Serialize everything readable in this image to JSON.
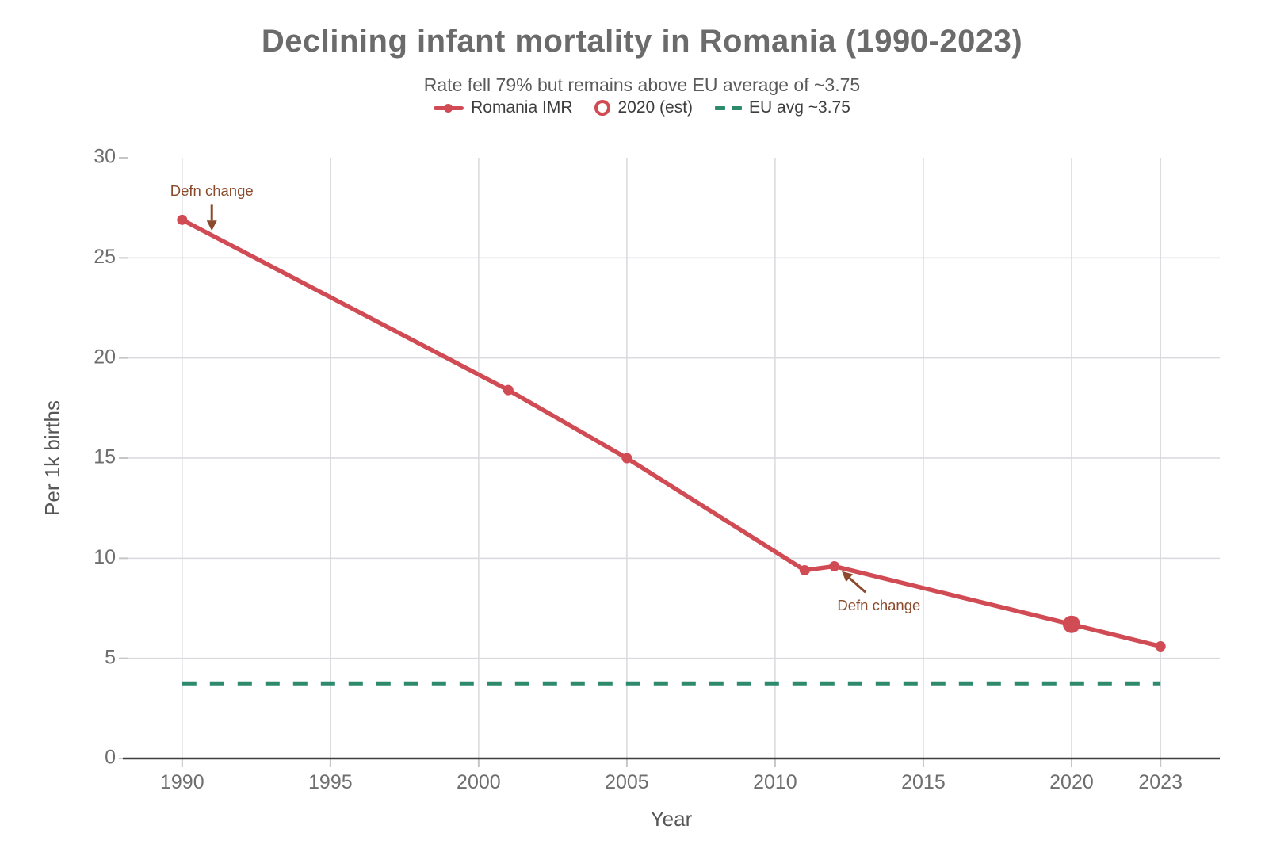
{
  "header": {
    "title": "Declining infant mortality in Romania (1990-2023)",
    "subtitle": "Rate fell 79% but remains above EU average of ~3.75"
  },
  "legend": {
    "items": [
      {
        "label": "Romania IMR",
        "swatch": "line-dot",
        "color": "#d04b54"
      },
      {
        "label": "2020 (est)",
        "swatch": "open-circle",
        "color": "#d04b54"
      },
      {
        "label": "EU avg ~3.75",
        "swatch": "dashes",
        "color": "#2e8a6c"
      }
    ]
  },
  "chart_data": {
    "type": "line",
    "title": "Declining infant mortality in Romania (1990-2023)",
    "subtitle": "Rate fell 79% but remains above EU average of ~3.75",
    "xlabel": "Year",
    "ylabel": "Per 1k births",
    "xlim": [
      1988,
      2025
    ],
    "ylim": [
      0,
      30
    ],
    "x_ticks": [
      1990,
      1995,
      2000,
      2005,
      2010,
      2015,
      2020,
      2023
    ],
    "y_ticks": [
      0,
      5,
      10,
      15,
      20,
      25,
      30
    ],
    "grid": true,
    "legend_position": "top",
    "series": [
      {
        "name": "Romania IMR",
        "type": "line",
        "color": "#d04b54",
        "points": [
          {
            "x": 1990,
            "y": 26.9
          },
          {
            "x": 2001,
            "y": 18.4
          },
          {
            "x": 2005,
            "y": 15.0
          },
          {
            "x": 2011,
            "y": 9.4
          },
          {
            "x": 2012,
            "y": 9.6
          },
          {
            "x": 2020,
            "y": 6.7
          },
          {
            "x": 2023,
            "y": 5.6
          }
        ],
        "emphasized_point_x": 2020,
        "emphasized_point_label": "2020 (est)"
      },
      {
        "name": "EU avg ~3.75",
        "type": "dashed-horizontal-line",
        "color": "#2e8a6c",
        "y": 3.75,
        "x_start": 1990,
        "x_end": 2023
      }
    ],
    "annotations": [
      {
        "text": "Defn change",
        "color": "#8b4a2c",
        "text_x": 1991.0,
        "text_y": 28.3,
        "arrow_from": {
          "x": 1991.0,
          "y": 27.65
        },
        "arrow_to": {
          "x": 1991.0,
          "y": 26.35
        }
      },
      {
        "text": "Defn change",
        "color": "#8b4a2c",
        "text_x": 2013.5,
        "text_y": 7.6,
        "arrow_from": {
          "x": 2013.05,
          "y": 8.3
        },
        "arrow_to": {
          "x": 2012.25,
          "y": 9.35
        }
      }
    ],
    "style": {
      "line_color": "#d04b54",
      "eu_line_color": "#2e8a6c",
      "annotation_color": "#8b4a2c",
      "grid_color": "#d9d9de",
      "tick_mark_color": "#c6c6c6",
      "axis_line_color": "#3f3f3f",
      "tick_label_color": "#6e6e6e",
      "axis_title_color": "#565656"
    }
  }
}
